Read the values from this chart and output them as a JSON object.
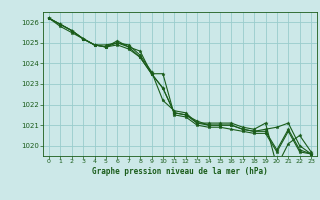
{
  "title": "Graphe pression niveau de la mer (hPa)",
  "background_color": "#cce8e8",
  "grid_color": "#99cccc",
  "line_color": "#1a5c1a",
  "xlim": [
    -0.5,
    23.5
  ],
  "ylim": [
    1019.5,
    1026.5
  ],
  "yticks": [
    1020,
    1021,
    1022,
    1023,
    1024,
    1025,
    1026
  ],
  "xticks": [
    0,
    1,
    2,
    3,
    4,
    5,
    6,
    7,
    8,
    9,
    10,
    11,
    12,
    13,
    14,
    15,
    16,
    17,
    18,
    19,
    20,
    21,
    22,
    23
  ],
  "series": [
    [
      1026.2,
      1025.9,
      1025.6,
      1025.2,
      1024.9,
      1024.9,
      1025.0,
      1024.9,
      1024.4,
      1023.6,
      1022.2,
      1021.7,
      1021.6,
      1021.1,
      1021.1,
      1021.1,
      1021.1,
      1020.9,
      1020.8,
      1021.1,
      1019.0,
      1020.1,
      1020.5,
      1019.7
    ],
    [
      1026.2,
      1025.9,
      1025.6,
      1025.2,
      1024.9,
      1024.8,
      1025.1,
      1024.8,
      1024.6,
      1023.5,
      1022.8,
      1021.6,
      1021.5,
      1021.2,
      1021.0,
      1021.0,
      1021.0,
      1020.8,
      1020.7,
      1020.8,
      1020.9,
      1021.1,
      1020.0,
      1019.6
    ],
    [
      1026.2,
      1025.9,
      1025.6,
      1025.2,
      1024.9,
      1024.8,
      1025.0,
      1024.8,
      1024.3,
      1023.5,
      1022.8,
      1021.6,
      1021.5,
      1021.1,
      1021.0,
      1021.0,
      1021.0,
      1020.8,
      1020.7,
      1020.7,
      1019.8,
      1020.8,
      1019.8,
      1019.6
    ],
    [
      1026.2,
      1025.8,
      1025.5,
      1025.2,
      1024.9,
      1024.8,
      1024.9,
      1024.7,
      1024.3,
      1023.5,
      1023.5,
      1021.5,
      1021.4,
      1021.0,
      1020.9,
      1020.9,
      1020.8,
      1020.7,
      1020.6,
      1020.6,
      1019.7,
      1020.7,
      1019.7,
      1019.6
    ]
  ],
  "figsize": [
    3.2,
    2.0
  ],
  "dpi": 100
}
